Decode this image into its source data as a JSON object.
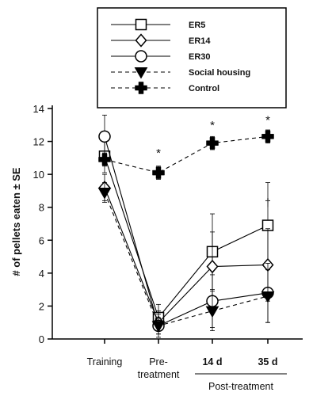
{
  "chart_data": {
    "type": "line",
    "ylabel": "# of pellets eaten ± SE",
    "ylim": [
      0,
      14
    ],
    "yticks": [
      0,
      2,
      4,
      6,
      8,
      10,
      12,
      14
    ],
    "categories": [
      "Training",
      "Pre-\ntreatment",
      "14 d",
      "35 d"
    ],
    "group_label": "Post-treatment",
    "grid": false,
    "legend_position": "top",
    "series": [
      {
        "name": "ER5",
        "marker": "square",
        "line": "solid",
        "values": [
          11.1,
          1.3,
          5.3,
          6.9
        ],
        "errors": [
          1.0,
          0.8,
          2.3,
          2.6
        ]
      },
      {
        "name": "ER14",
        "marker": "diamond",
        "line": "solid",
        "values": [
          9.2,
          1.0,
          4.4,
          4.5
        ],
        "errors": [
          0.8,
          0.7,
          2.1,
          2.2
        ]
      },
      {
        "name": "ER30",
        "marker": "circle",
        "line": "solid",
        "values": [
          12.3,
          0.8,
          2.3,
          2.8
        ],
        "errors": [
          1.3,
          0.7,
          1.6,
          1.8
        ]
      },
      {
        "name": "Social housing",
        "marker": "triangle-down",
        "line": "dashed",
        "values": [
          8.9,
          0.8,
          1.7,
          2.6
        ],
        "errors": [
          0.6,
          0.5,
          1.2,
          1.6
        ]
      },
      {
        "name": "Control",
        "marker": "cross-filled",
        "line": "dashed",
        "values": [
          10.9,
          10.1,
          11.9,
          12.3
        ],
        "errors": [
          0.4,
          0.4,
          0.4,
          0.4
        ]
      }
    ],
    "annotations": [
      {
        "category_index": 1,
        "y": 11.3,
        "text": "*"
      },
      {
        "category_index": 2,
        "y": 13.0,
        "text": "*"
      },
      {
        "category_index": 3,
        "y": 13.3,
        "text": "*"
      },
      {
        "category_index": 3,
        "y": 8.3,
        "text": "†"
      }
    ]
  }
}
